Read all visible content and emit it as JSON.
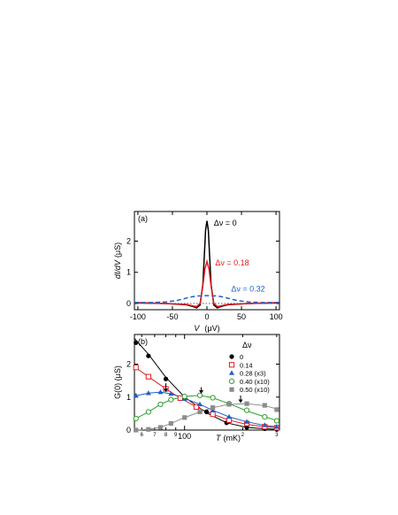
{
  "chart_data": [
    {
      "panel_label": "(a)",
      "type": "line",
      "xlabel_italic": "V",
      "xlabel_unit": "(μV)",
      "ylabel_italic": "dI/dV",
      "ylabel_unit": "(μS)",
      "xlim": [
        -105,
        105
      ],
      "ylim": [
        -0.2,
        2.95
      ],
      "xticks": [
        -100,
        -50,
        0,
        50,
        100
      ],
      "yticks": [
        0,
        1,
        2
      ],
      "series": [
        {
          "name": "Δν = 0",
          "color": "#000000",
          "dash": "solid",
          "x": [
            -105,
            -60,
            -30,
            -20,
            -15,
            -10,
            -6,
            -4,
            -2,
            0,
            2,
            4,
            6,
            10,
            15,
            20,
            30,
            60,
            105
          ],
          "y": [
            0.02,
            0.0,
            -0.04,
            -0.1,
            -0.14,
            -0.05,
            0.6,
            1.45,
            2.35,
            2.65,
            2.35,
            1.45,
            0.6,
            -0.05,
            -0.14,
            -0.1,
            -0.04,
            0.0,
            0.02
          ]
        },
        {
          "name": "Δν = 0.18",
          "color": "#e41a1c",
          "dash": "solid",
          "x": [
            -105,
            -60,
            -30,
            -20,
            -15,
            -10,
            -6,
            -3,
            0,
            3,
            6,
            10,
            15,
            20,
            30,
            60,
            105
          ],
          "y": [
            0.03,
            0.0,
            -0.03,
            -0.08,
            -0.1,
            0.0,
            0.55,
            1.1,
            1.35,
            1.1,
            0.55,
            0.0,
            -0.1,
            -0.08,
            -0.03,
            0.0,
            0.03
          ]
        },
        {
          "name": "Δν = 0.32",
          "color": "#1f5fc9",
          "dash": "dashed",
          "x": [
            -105,
            -80,
            -60,
            -45,
            -35,
            -25,
            -15,
            -5,
            0,
            5,
            15,
            25,
            35,
            45,
            60,
            80,
            105
          ],
          "y": [
            0.03,
            0.03,
            0.05,
            0.09,
            0.14,
            0.2,
            0.24,
            0.25,
            0.25,
            0.25,
            0.24,
            0.2,
            0.14,
            0.09,
            0.05,
            0.03,
            0.03
          ]
        }
      ],
      "annotations": [
        {
          "text": "Δν = 0",
          "color": "#000000",
          "x": 10,
          "y": 2.5
        },
        {
          "text": "Δν = 0.18",
          "color": "#e41a1c",
          "x": 12,
          "y": 1.22
        },
        {
          "text": "Δν = 0.32",
          "color": "#1f5fc9",
          "x": 35,
          "y": 0.38
        }
      ]
    },
    {
      "panel_label": "(b)",
      "type": "scatter",
      "scale_x": "log",
      "xlabel_italic": "T",
      "xlabel_unit": "(mK)",
      "ylabel": "G(0)  (μS)",
      "xlim": [
        55,
        310
      ],
      "ylim": [
        0,
        2.9
      ],
      "xticks": [
        {
          "value": 60,
          "label": "6"
        },
        {
          "value": 70,
          "label": "7"
        },
        {
          "value": 80,
          "label": "8"
        },
        {
          "value": 90,
          "label": "9"
        },
        {
          "value": 100,
          "label": "100"
        },
        {
          "value": 200,
          "label": "2"
        },
        {
          "value": 300,
          "label": "3"
        }
      ],
      "yticks": [
        0,
        1,
        2
      ],
      "legend_title": "Δν",
      "legend_position": "top-right",
      "series": [
        {
          "name": "0",
          "marker": "filled-circle",
          "color": "#000000",
          "x": [
            56,
            65,
            80,
            100,
            130,
            165,
            210,
            260,
            300
          ],
          "y": [
            2.65,
            2.25,
            1.55,
            1.0,
            0.55,
            0.22,
            0.08,
            0.04,
            0.02
          ],
          "fit_x": [
            55,
            65,
            80,
            100,
            130,
            165,
            210,
            260,
            310
          ],
          "fit_y": [
            2.78,
            2.3,
            1.6,
            1.0,
            0.52,
            0.22,
            0.08,
            0.04,
            0.02
          ]
        },
        {
          "name": "0.14",
          "marker": "open-square",
          "color": "#e41a1c",
          "x": [
            56,
            65,
            80,
            95,
            115,
            140,
            170,
            210,
            260,
            300
          ],
          "y": [
            1.9,
            1.62,
            1.25,
            0.97,
            0.7,
            0.48,
            0.3,
            0.2,
            0.1,
            0.07
          ],
          "fit_x": [
            55,
            65,
            80,
            95,
            115,
            140,
            170,
            210,
            260,
            310
          ],
          "fit_y": [
            1.92,
            1.62,
            1.25,
            0.97,
            0.7,
            0.48,
            0.3,
            0.17,
            0.1,
            0.07
          ]
        },
        {
          "name": "0.28 (x3)",
          "marker": "filled-triangle",
          "color": "#1f5fc9",
          "x": [
            56,
            65,
            75,
            85,
            100,
            120,
            140,
            170,
            210,
            260,
            300
          ],
          "y": [
            1.05,
            1.12,
            1.15,
            1.1,
            0.95,
            0.78,
            0.6,
            0.4,
            0.25,
            0.15,
            0.1
          ],
          "fit_x": [
            55,
            65,
            75,
            85,
            100,
            120,
            140,
            170,
            210,
            260,
            310
          ],
          "fit_y": [
            1.03,
            1.12,
            1.15,
            1.1,
            0.96,
            0.78,
            0.6,
            0.4,
            0.25,
            0.14,
            0.09
          ]
        },
        {
          "name": "0.40 (x10)",
          "marker": "open-circle",
          "color": "#2ca02c",
          "x": [
            56,
            65,
            75,
            85,
            100,
            120,
            140,
            170,
            210,
            260,
            300
          ],
          "y": [
            0.35,
            0.55,
            0.78,
            0.92,
            1.02,
            1.05,
            0.98,
            0.8,
            0.6,
            0.4,
            0.28
          ],
          "fit_x": [
            55,
            65,
            75,
            85,
            100,
            120,
            140,
            170,
            210,
            260,
            310
          ],
          "fit_y": [
            0.33,
            0.55,
            0.78,
            0.92,
            1.02,
            1.05,
            0.98,
            0.8,
            0.58,
            0.4,
            0.27
          ]
        },
        {
          "name": "0.50 (x10)",
          "marker": "filled-square",
          "color": "#8c8c8c",
          "x": [
            56,
            65,
            75,
            85,
            100,
            120,
            140,
            170,
            210,
            260,
            300
          ],
          "y": [
            0.0,
            0.02,
            0.08,
            0.2,
            0.38,
            0.55,
            0.68,
            0.78,
            0.8,
            0.75,
            0.62
          ],
          "fit_x": [
            55,
            65,
            75,
            85,
            100,
            120,
            140,
            170,
            210,
            260,
            310
          ],
          "fit_y": [
            0.0,
            0.02,
            0.08,
            0.2,
            0.38,
            0.55,
            0.68,
            0.78,
            0.8,
            0.74,
            0.62
          ]
        }
      ],
      "arrows": [
        {
          "x": 80,
          "y_tail": 1.42,
          "y_head": 1.15
        },
        {
          "x": 122,
          "y_tail": 1.3,
          "y_head": 1.1
        },
        {
          "x": 195,
          "y_tail": 1.05,
          "y_head": 0.82
        }
      ]
    }
  ]
}
